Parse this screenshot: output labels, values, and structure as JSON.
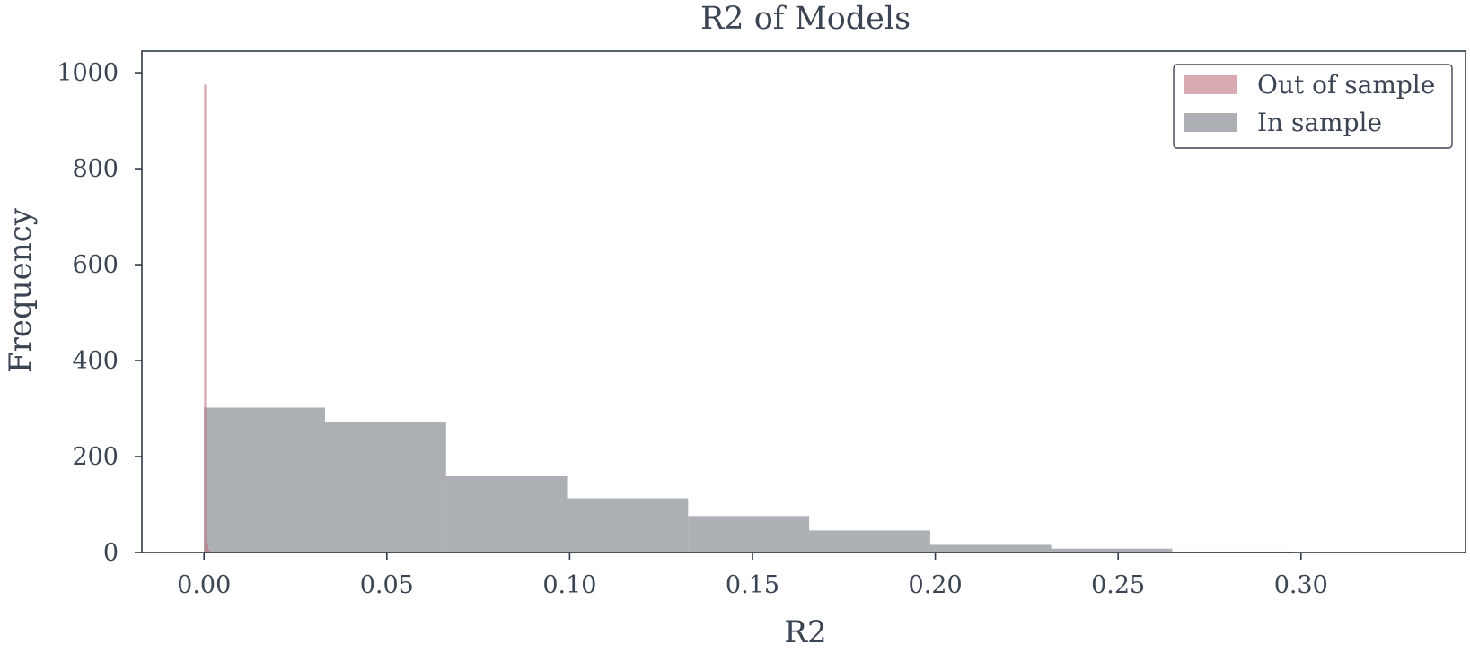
{
  "chart_data": {
    "type": "histogram",
    "title": "R2 of Models",
    "xlabel": "R2",
    "ylabel": "Frequency",
    "xlim": [
      -0.017,
      0.345
    ],
    "ylim": [
      0,
      1045
    ],
    "xticks": [
      0.0,
      0.05,
      0.1,
      0.15,
      0.2,
      0.25,
      0.3
    ],
    "xtick_labels": [
      "0.00",
      "0.05",
      "0.10",
      "0.15",
      "0.20",
      "0.25",
      "0.30"
    ],
    "yticks": [
      0,
      200,
      400,
      600,
      800,
      1000
    ],
    "ytick_labels": [
      "0",
      "200",
      "400",
      "600",
      "800",
      "1000"
    ],
    "grid": false,
    "legend_position": "top-right",
    "series": [
      {
        "name": "Out of sample",
        "color": "#c0727f",
        "opacity": 0.6,
        "bins": [
          {
            "x0": 0.0,
            "x1": 0.0006,
            "count": 975
          },
          {
            "x0": 0.0006,
            "x1": 0.0012,
            "count": 20
          },
          {
            "x0": 0.0012,
            "x1": 0.0018,
            "count": 5
          }
        ]
      },
      {
        "name": "In sample",
        "color": "#7f868d",
        "opacity": 0.65,
        "bins": [
          {
            "x0": 0.0,
            "x1": 0.0331,
            "count": 302
          },
          {
            "x0": 0.0331,
            "x1": 0.0662,
            "count": 271
          },
          {
            "x0": 0.0662,
            "x1": 0.0993,
            "count": 159
          },
          {
            "x0": 0.0993,
            "x1": 0.1324,
            "count": 113
          },
          {
            "x0": 0.1324,
            "x1": 0.1655,
            "count": 76
          },
          {
            "x0": 0.1655,
            "x1": 0.1986,
            "count": 46
          },
          {
            "x0": 0.1986,
            "x1": 0.2317,
            "count": 16
          },
          {
            "x0": 0.2317,
            "x1": 0.2648,
            "count": 8
          },
          {
            "x0": 0.2648,
            "x1": 0.2979,
            "count": 2
          },
          {
            "x0": 0.2979,
            "x1": 0.331,
            "count": 1
          }
        ]
      }
    ]
  }
}
